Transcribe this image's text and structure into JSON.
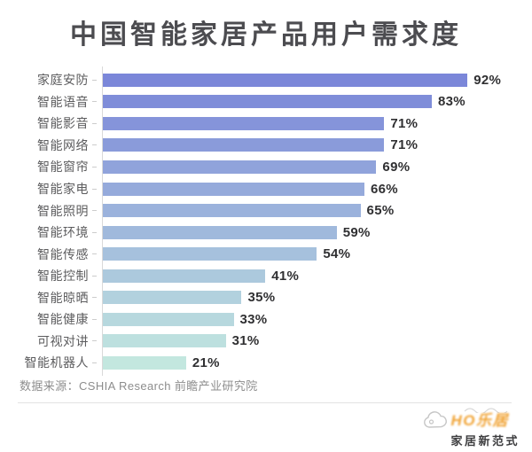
{
  "title": "中国智能家居产品用户需求度",
  "chart_data": {
    "type": "bar",
    "orientation": "horizontal",
    "title": "中国智能家居产品用户需求度",
    "categories": [
      "家庭安防",
      "智能语音",
      "智能影音",
      "智能网络",
      "智能窗帘",
      "智能家电",
      "智能照明",
      "智能环境",
      "智能传感",
      "智能控制",
      "智能晾晒",
      "智能健康",
      "可视对讲",
      "智能机器人"
    ],
    "values": [
      92,
      83,
      71,
      71,
      69,
      66,
      65,
      59,
      54,
      41,
      35,
      33,
      31,
      21
    ],
    "value_suffix": "%",
    "xlabel": "",
    "ylabel": "",
    "xlim": [
      0,
      100
    ],
    "grid": false,
    "legend": false,
    "value_labels_position": "end-of-bar",
    "bar_colors": [
      "#7B87D9",
      "#7F8DD9",
      "#8594DA",
      "#8A9BDA",
      "#90A3DB",
      "#95AADB",
      "#9BB2DC",
      "#A0B9DC",
      "#A6C1DD",
      "#ACC9DD",
      "#B2D1DE",
      "#B7D8DE",
      "#BDE0DF",
      "#C3E7DF"
    ]
  },
  "source": {
    "label": "数据来源：CSHIA Research 前瞻产业研究院"
  },
  "logo": {
    "wordmark": "HO乐居",
    "tagline": "家居新范式"
  },
  "colors": {
    "title_text": "#4c4c50",
    "category_text": "#5c5c5e",
    "value_text": "#303032",
    "axis": "#d9d9d9",
    "source_text": "#8d8d8d",
    "logo_orange": "#f0a232",
    "background": "#ffffff"
  }
}
